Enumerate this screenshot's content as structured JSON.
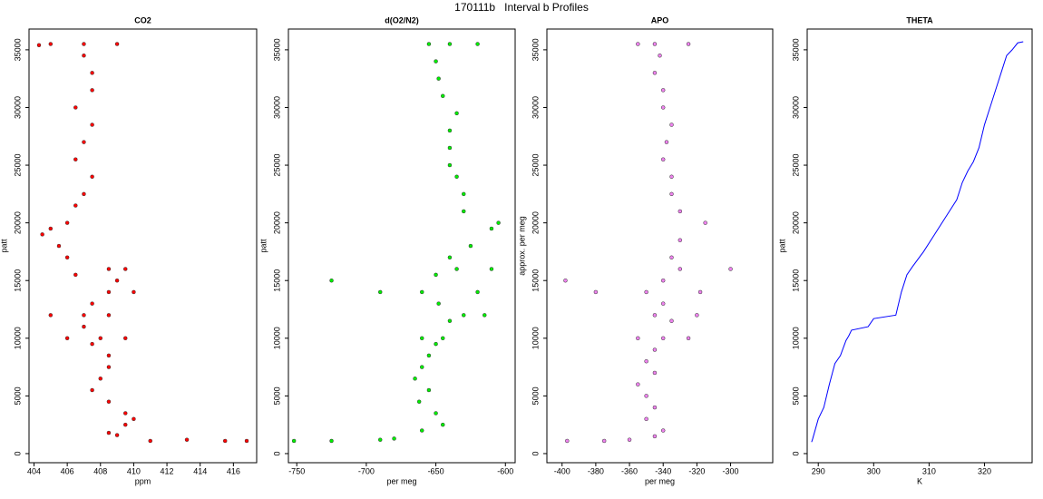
{
  "title": "170111b   Interval b Profiles",
  "chart_data": [
    {
      "type": "scatter",
      "title": "CO2",
      "xlabel": "ppm",
      "ylabel": "patt",
      "color": "#ff0000",
      "xlim": [
        403.7,
        417.4
      ],
      "xticks": [
        404,
        406,
        408,
        410,
        412,
        414,
        416
      ],
      "ylim": [
        -790,
        36800
      ],
      "yticks": [
        0,
        5000,
        10000,
        15000,
        20000,
        25000,
        30000,
        35000
      ],
      "x": [
        416.8,
        415.5,
        413.2,
        411,
        409,
        408.5,
        409.5,
        410,
        409.5,
        408.5,
        407.5,
        408,
        408.5,
        408.5,
        407.5,
        406,
        408,
        409.5,
        407,
        405,
        407,
        408.5,
        407.5,
        408.5,
        410,
        409,
        406.5,
        408.5,
        409.5,
        406,
        405.5,
        405,
        404.5,
        406,
        406.5,
        407,
        407.5,
        406.5,
        407,
        407.5,
        406.5,
        407.5,
        407.5,
        407,
        405,
        407,
        409,
        404.3
      ],
      "values": [
        1100,
        1100,
        1200,
        1100,
        1600,
        1800,
        2500,
        3000,
        3500,
        4500,
        5500,
        6500,
        7500,
        8500,
        9500,
        10000,
        10000,
        10000,
        11000,
        12000,
        12000,
        12000,
        13000,
        14000,
        14000,
        15000,
        15500,
        16000,
        16000,
        17000,
        18000,
        19500,
        19000,
        20000,
        21500,
        22500,
        24000,
        25500,
        27000,
        28500,
        30000,
        31500,
        33000,
        34500,
        35500,
        35500,
        35500,
        35400
      ]
    },
    {
      "type": "scatter",
      "title": "d(O2/N2)",
      "xlabel": "per meg",
      "ylabel": "patt",
      "color": "#00ee00",
      "xlim": [
        -756,
        -593
      ],
      "xticks": [
        -750,
        -700,
        -650,
        -600
      ],
      "ylim": [
        -790,
        36800
      ],
      "yticks": [
        0,
        5000,
        10000,
        15000,
        20000,
        25000,
        30000,
        35000
      ],
      "x": [
        -752,
        -725,
        -690,
        -680,
        -660,
        -645,
        -650,
        -662,
        -655,
        -665,
        -660,
        -655,
        -650,
        -660,
        -645,
        -640,
        -630,
        -615,
        -648,
        -690,
        -660,
        -620,
        -725,
        -650,
        -635,
        -610,
        -640,
        -625,
        -610,
        -605,
        -630,
        -630,
        -635,
        -640,
        -640,
        -640,
        -635,
        -645,
        -648,
        -650,
        -640,
        -620,
        -655
      ],
      "values": [
        1100,
        1100,
        1200,
        1300,
        2000,
        2500,
        3500,
        4500,
        5500,
        6500,
        7500,
        8500,
        9500,
        10000,
        10000,
        11500,
        12000,
        12000,
        13000,
        14000,
        14000,
        14000,
        15000,
        15500,
        16000,
        16000,
        17000,
        18000,
        19500,
        20000,
        21000,
        22500,
        24000,
        25000,
        26500,
        28000,
        29500,
        31000,
        32500,
        34000,
        35500,
        35500,
        35500
      ]
    },
    {
      "type": "scatter",
      "title": "APO",
      "xlabel": "per meg",
      "ylabel": "approx. per meg",
      "color": "#ee82ee",
      "xlim": [
        -409,
        -275
      ],
      "xticks": [
        -400,
        -380,
        -360,
        -340,
        -320,
        -300
      ],
      "ylim": [
        -790,
        36800
      ],
      "yticks": [
        0,
        5000,
        10000,
        15000,
        20000,
        25000,
        30000,
        35000
      ],
      "x": [
        -397,
        -375,
        -360,
        -345,
        -340,
        -350,
        -345,
        -350,
        -355,
        -345,
        -350,
        -345,
        -340,
        -355,
        -325,
        -335,
        -320,
        -345,
        -340,
        -380,
        -350,
        -318,
        -398,
        -340,
        -330,
        -300,
        -335,
        -330,
        -315,
        -330,
        -335,
        -335,
        -340,
        -338,
        -335,
        -340,
        -340,
        -345,
        -342,
        -355,
        -325,
        -345
      ],
      "values": [
        1100,
        1100,
        1200,
        1500,
        2000,
        3000,
        4000,
        5000,
        6000,
        7000,
        8000,
        9000,
        10000,
        10000,
        10000,
        11500,
        12000,
        12000,
        13000,
        14000,
        14000,
        14000,
        15000,
        15000,
        16000,
        16000,
        17000,
        18500,
        20000,
        21000,
        22500,
        24000,
        25500,
        27000,
        28500,
        30000,
        31500,
        33000,
        34500,
        35500,
        35500,
        35500
      ]
    },
    {
      "type": "line",
      "title": "THETA",
      "xlabel": "K",
      "ylabel": "patt",
      "color": "#0000ff",
      "xlim": [
        288,
        328.6
      ],
      "xticks": [
        290,
        300,
        310,
        320
      ],
      "ylim": [
        -790,
        36800
      ],
      "yticks": [
        0,
        5000,
        10000,
        15000,
        20000,
        25000,
        30000,
        35000
      ],
      "x": [
        288.8,
        289,
        290,
        291,
        292,
        293,
        294,
        295,
        295.5,
        296,
        299,
        300,
        304,
        305,
        306,
        307,
        309,
        311,
        313,
        315,
        316,
        317,
        318,
        319,
        320,
        321,
        322,
        323,
        324,
        325,
        326,
        327
      ],
      "values": [
        1000,
        1300,
        3000,
        4000,
        6000,
        7800,
        8500,
        9800,
        10200,
        10700,
        11000,
        11700,
        12000,
        14000,
        15500,
        16200,
        17500,
        19000,
        20500,
        22000,
        23500,
        24500,
        25300,
        26500,
        28500,
        30000,
        31500,
        33000,
        34500,
        35000,
        35600,
        35700
      ]
    }
  ]
}
